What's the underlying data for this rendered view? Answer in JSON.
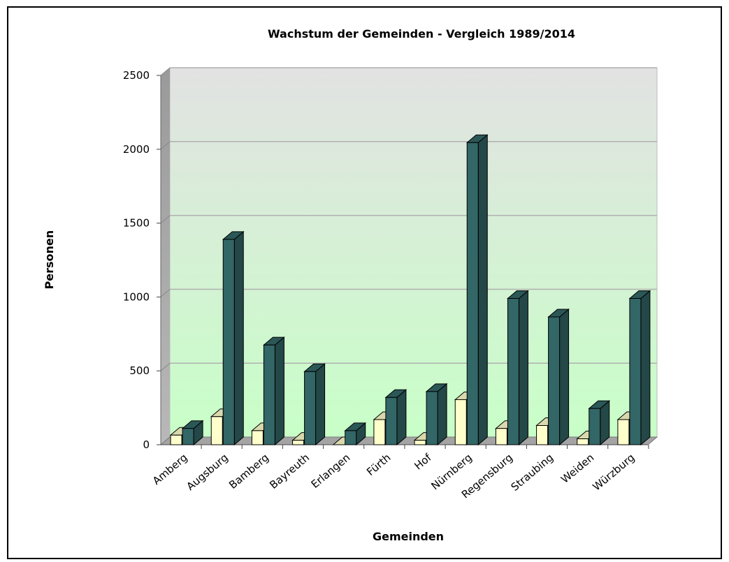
{
  "chart_data": {
    "type": "bar3d",
    "title": "Wachstum der Gemeinden - Vergleich 1989/2014",
    "x_label": "Gemeinden",
    "y_label": "Personen",
    "categories": [
      "Amberg",
      "Augsburg",
      "Bamberg",
      "Bayreuth",
      "Erlangen",
      "Fürth",
      "Hof",
      "Nürnberg",
      "Regensburg",
      "Straubing",
      "Weiden",
      "Würzburg"
    ],
    "series": [
      {
        "color": "#ffffcc",
        "values": [
          65,
          190,
          95,
          30,
          0,
          170,
          30,
          305,
          110,
          130,
          40,
          170
        ]
      },
      {
        "color": "#336666",
        "values": [
          110,
          1390,
          675,
          495,
          95,
          320,
          360,
          2045,
          990,
          865,
          245,
          990
        ]
      }
    ],
    "ylim": [
      0,
      2500
    ],
    "yticks": [
      0,
      500,
      1000,
      1500,
      2000,
      2500
    ],
    "grid": true
  }
}
